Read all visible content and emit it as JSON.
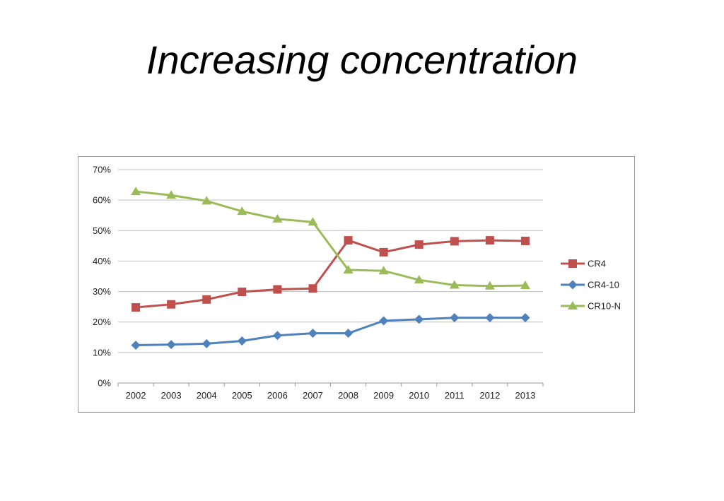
{
  "slide": {
    "title": "Increasing concentration"
  },
  "chart_data": {
    "type": "line",
    "title": "",
    "xlabel": "",
    "ylabel": "",
    "categories": [
      "2002",
      "2003",
      "2004",
      "2005",
      "2006",
      "2007",
      "2008",
      "2009",
      "2010",
      "2011",
      "2012",
      "2013"
    ],
    "y_ticks": [
      "0%",
      "10%",
      "20%",
      "30%",
      "40%",
      "50%",
      "60%",
      "70%"
    ],
    "ylim": [
      0,
      70
    ],
    "grid": true,
    "legend_position": "right",
    "series": [
      {
        "name": "CR4",
        "color": "#c0504d",
        "marker": "square",
        "values": [
          24.8,
          25.8,
          27.4,
          29.9,
          30.7,
          31.0,
          46.8,
          42.9,
          45.4,
          46.5,
          46.8,
          46.6
        ]
      },
      {
        "name": "CR4-10",
        "color": "#4f81bd",
        "marker": "diamond",
        "values": [
          12.4,
          12.6,
          12.9,
          13.8,
          15.6,
          16.3,
          16.3,
          20.4,
          20.9,
          21.4,
          21.4,
          21.4
        ]
      },
      {
        "name": "CR10-N",
        "color": "#9bbb59",
        "marker": "triangle",
        "values": [
          62.8,
          61.6,
          59.7,
          56.3,
          53.8,
          52.8,
          37.1,
          36.8,
          33.8,
          32.1,
          31.8,
          32.0
        ]
      }
    ]
  }
}
